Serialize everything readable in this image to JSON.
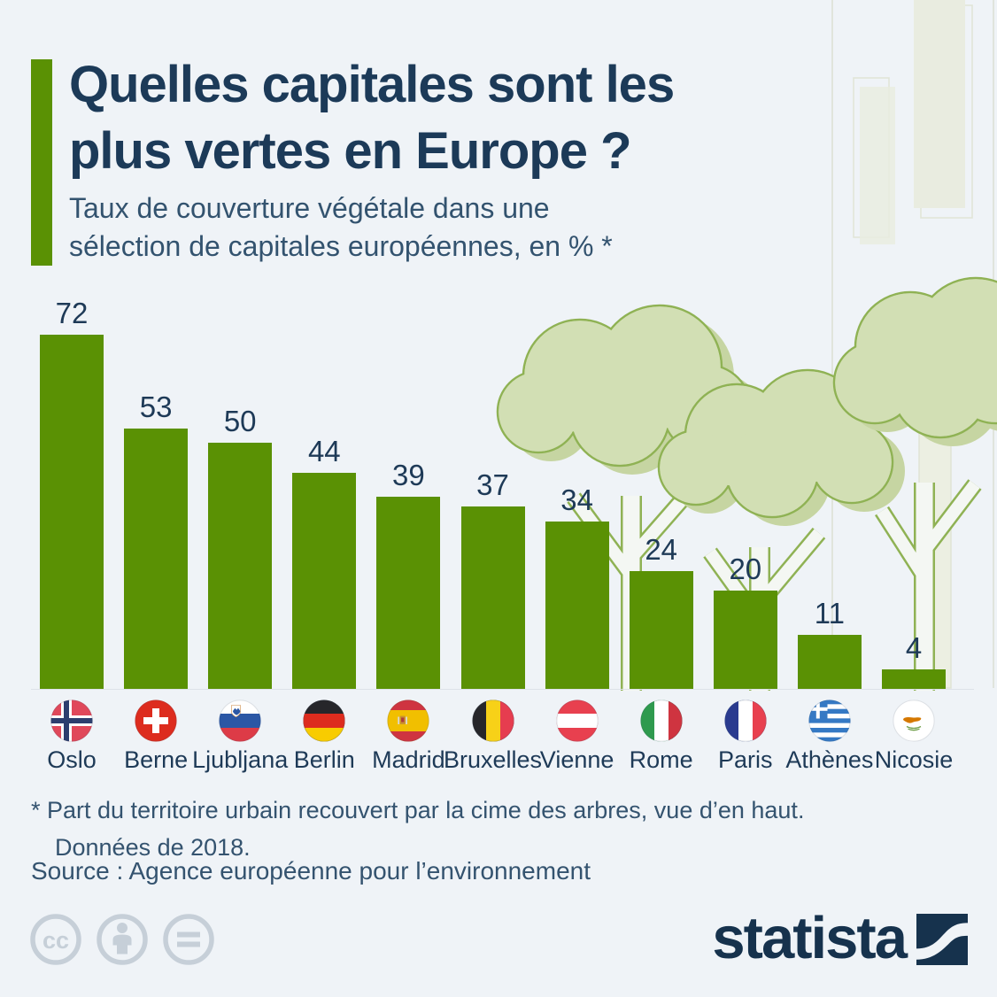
{
  "header": {
    "title_line1": "Quelles capitales sont les",
    "title_line2": "plus vertes en Europe ?",
    "subtitle_line1": "Taux de couverture végétale dans une",
    "subtitle_line2": "sélection de capitales européennes, en % *"
  },
  "chart_data": {
    "type": "bar",
    "title": "Quelles capitales sont les plus vertes en Europe ?",
    "subtitle": "Taux de couverture végétale dans une sélection de capitales européennes, en % *",
    "unit": "%",
    "categories": [
      "Oslo",
      "Berne",
      "Ljubljana",
      "Berlin",
      "Madrid",
      "Bruxelles",
      "Vienne",
      "Rome",
      "Paris",
      "Athènes",
      "Nicosie"
    ],
    "values": [
      72,
      53,
      50,
      44,
      39,
      37,
      34,
      24,
      20,
      11,
      4
    ],
    "flag_icons": [
      "norway-flag-icon",
      "switzerland-flag-icon",
      "slovenia-flag-icon",
      "germany-flag-icon",
      "spain-flag-icon",
      "belgium-flag-icon",
      "austria-flag-icon",
      "italy-flag-icon",
      "france-flag-icon",
      "greece-flag-icon",
      "cyprus-flag-icon"
    ],
    "bar_color": "#5a9104",
    "value_label_color": "#1e3a57",
    "ylim": [
      0,
      80
    ],
    "grid": false,
    "legend": false,
    "data_year": "2018"
  },
  "footnote": {
    "line1": "* Part du territoire urbain recouvert par la cime des arbres, vue d’en haut.",
    "line2": "Données de 2018."
  },
  "source_line": "Source : Agence européenne pour l’environnement",
  "footer": {
    "brand": "statista",
    "license_icons": [
      "cc-icon",
      "cc-by-person-icon",
      "cc-nd-equals-icon"
    ]
  },
  "colors": {
    "background": "#eff3f7",
    "bar_green": "#5a9104",
    "navy": "#1c3a58",
    "tree_fill": "#d2dfb4",
    "tree_outline": "#8fb254"
  }
}
